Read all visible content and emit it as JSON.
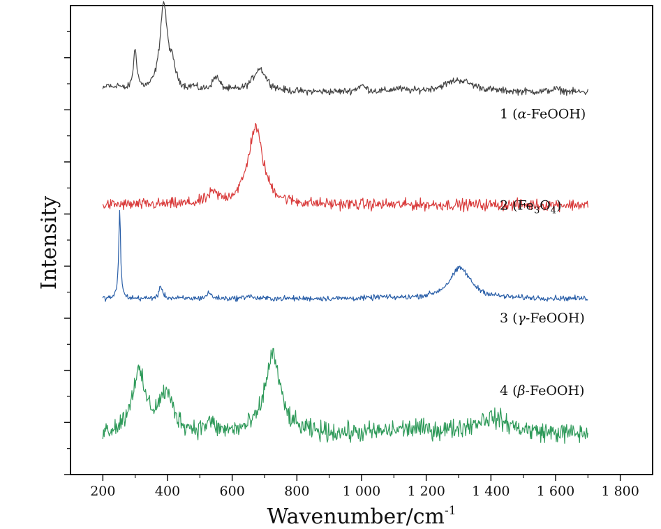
{
  "chart_data": {
    "type": "line",
    "title": "",
    "xlabel": "Wavenumber/cm",
    "xlabel_superscript": "-1",
    "ylabel": "Intensity",
    "xlim": [
      100,
      1900
    ],
    "ylim": [
      0,
      1
    ],
    "xticks": [
      200,
      400,
      600,
      800,
      1000,
      1200,
      1400,
      1600,
      1800
    ],
    "xtick_labels": [
      "200",
      "400",
      "600",
      "800",
      "1 000",
      "1 200",
      "1 400",
      "1 600",
      "1 800"
    ],
    "y_tick_labels_shown": false,
    "x_range_of_data": [
      200,
      1700
    ],
    "grid": false,
    "legend": "labels at right of each trace",
    "series": [
      {
        "name": "1 (α-FeOOH)",
        "label_parts": [
          "1  (",
          "α",
          "-FeOOH)"
        ],
        "color": "#444444",
        "baseline": 0.815,
        "noise": 0.0045,
        "peaks": [
          {
            "x": 215,
            "height": 0.012,
            "width": 10
          },
          {
            "x": 245,
            "height": 0.012,
            "width": 12
          },
          {
            "x": 300,
            "height": 0.085,
            "width": 7
          },
          {
            "x": 388,
            "height": 0.185,
            "width": 14
          },
          {
            "x": 415,
            "height": 0.04,
            "width": 12
          },
          {
            "x": 480,
            "height": 0.008,
            "width": 12
          },
          {
            "x": 550,
            "height": 0.03,
            "width": 14
          },
          {
            "x": 685,
            "height": 0.05,
            "width": 25
          },
          {
            "x": 1000,
            "height": 0.013,
            "width": 16
          },
          {
            "x": 1110,
            "height": 0.006,
            "width": 20
          },
          {
            "x": 1300,
            "height": 0.026,
            "width": 55
          },
          {
            "x": 1600,
            "height": 0.006,
            "width": 20
          }
        ]
      },
      {
        "name": "2 (Fe3O4)",
        "label_parts": [
          "2  (Fe",
          "3",
          "O",
          "4",
          ")"
        ],
        "color": "#d93c3c",
        "baseline": 0.575,
        "noise": 0.0075,
        "peaks": [
          {
            "x": 540,
            "height": 0.02,
            "width": 20
          },
          {
            "x": 672,
            "height": 0.165,
            "width": 28
          }
        ]
      },
      {
        "name": "3 (γ-FeOOH)",
        "label_parts": [
          "3  (",
          "γ",
          "-FeOOH)"
        ],
        "color": "#2a5fa8",
        "baseline": 0.375,
        "noise": 0.0035,
        "peaks": [
          {
            "x": 252,
            "height": 0.19,
            "width": 3.5
          },
          {
            "x": 380,
            "height": 0.025,
            "width": 7
          },
          {
            "x": 528,
            "height": 0.012,
            "width": 9
          },
          {
            "x": 650,
            "height": 0.006,
            "width": 12
          },
          {
            "x": 1060,
            "height": 0.003,
            "width": 15
          },
          {
            "x": 1305,
            "height": 0.065,
            "width": 40
          }
        ]
      },
      {
        "name": "4 (β-FeOOH)",
        "label_parts": [
          "4  (",
          "β",
          "-FeOOH)"
        ],
        "color": "#2f9a5a",
        "baseline": 0.085,
        "noise": 0.013,
        "peaks": [
          {
            "x": 310,
            "height": 0.125,
            "width": 26
          },
          {
            "x": 395,
            "height": 0.08,
            "width": 28
          },
          {
            "x": 530,
            "height": 0.02,
            "width": 16
          },
          {
            "x": 725,
            "height": 0.17,
            "width": 28
          },
          {
            "x": 1150,
            "height": 0.01,
            "width": 80
          },
          {
            "x": 1400,
            "height": 0.035,
            "width": 70
          }
        ]
      }
    ]
  }
}
